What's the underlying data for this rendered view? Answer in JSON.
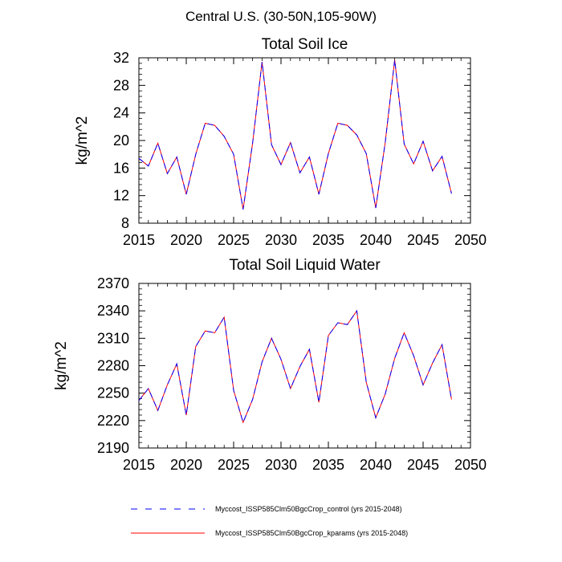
{
  "main_title": "Central U.S. (30-50N,105-90W)",
  "chart_data": [
    {
      "type": "line",
      "title": "Total Soil Ice",
      "xlabel": "",
      "ylabel": "kg/m^2",
      "xlim": [
        2015,
        2050
      ],
      "ylim": [
        8,
        32
      ],
      "xticks": [
        2015,
        2020,
        2025,
        2030,
        2035,
        2040,
        2045,
        2050
      ],
      "yticks": [
        8,
        12,
        16,
        20,
        24,
        28,
        32
      ],
      "x": [
        2015,
        2016,
        2017,
        2018,
        2019,
        2020,
        2021,
        2022,
        2023,
        2024,
        2025,
        2026,
        2027,
        2028,
        2029,
        2030,
        2031,
        2032,
        2033,
        2034,
        2035,
        2036,
        2037,
        2038,
        2039,
        2040,
        2041,
        2042,
        2043,
        2044,
        2045,
        2046,
        2047,
        2048
      ],
      "series": [
        {
          "name": "Myccost_ISSP585Clm50BgcCrop_control (yrs 2015-2048)",
          "color": "#0000ff",
          "dash": "dashed",
          "values": [
            17.4,
            16.3,
            19.6,
            15.2,
            17.6,
            12.2,
            18.0,
            22.5,
            22.2,
            20.6,
            18.0,
            10.0,
            19.6,
            31.4,
            19.4,
            16.5,
            19.7,
            15.3,
            17.6,
            12.2,
            18.1,
            22.5,
            22.2,
            20.8,
            18.1,
            10.2,
            19.7,
            31.7,
            19.5,
            16.6,
            19.9,
            15.6,
            17.7,
            12.3
          ]
        },
        {
          "name": "Myccost_ISSP585Clm50BgcCrop_kparams (yrs 2015-2048)",
          "color": "#ff0000",
          "dash": "solid",
          "values": [
            17.4,
            16.3,
            19.6,
            15.2,
            17.6,
            12.2,
            18.0,
            22.5,
            22.2,
            20.6,
            18.0,
            10.0,
            19.6,
            31.4,
            19.4,
            16.5,
            19.7,
            15.3,
            17.6,
            12.2,
            18.1,
            22.5,
            22.2,
            20.8,
            18.1,
            10.2,
            19.7,
            31.7,
            19.5,
            16.6,
            19.9,
            15.6,
            17.7,
            12.3
          ]
        }
      ]
    },
    {
      "type": "line",
      "title": "Total Soil Liquid Water",
      "xlabel": "",
      "ylabel": "kg/m^2",
      "xlim": [
        2015,
        2050
      ],
      "ylim": [
        2190,
        2370
      ],
      "xticks": [
        2015,
        2020,
        2025,
        2030,
        2035,
        2040,
        2045,
        2050
      ],
      "yticks": [
        2190,
        2220,
        2250,
        2280,
        2310,
        2340,
        2370
      ],
      "x": [
        2015,
        2016,
        2017,
        2018,
        2019,
        2020,
        2021,
        2022,
        2023,
        2024,
        2025,
        2026,
        2027,
        2028,
        2029,
        2030,
        2031,
        2032,
        2033,
        2034,
        2035,
        2036,
        2037,
        2038,
        2039,
        2040,
        2041,
        2042,
        2043,
        2044,
        2045,
        2046,
        2047,
        2048
      ],
      "series": [
        {
          "name": "Myccost_ISSP585Clm50BgcCrop_control (yrs 2015-2048)",
          "color": "#0000ff",
          "dash": "dashed",
          "values": [
            2242,
            2255,
            2231,
            2259,
            2282,
            2226,
            2301,
            2318,
            2316,
            2333,
            2253,
            2218,
            2243,
            2284,
            2310,
            2287,
            2255,
            2279,
            2298,
            2240,
            2313,
            2327,
            2325,
            2340,
            2262,
            2223,
            2249,
            2288,
            2316,
            2291,
            2259,
            2283,
            2303,
            2243
          ]
        },
        {
          "name": "Myccost_ISSP585Clm50BgcCrop_kparams (yrs 2015-2048)",
          "color": "#ff0000",
          "dash": "solid",
          "values": [
            2242,
            2255,
            2231,
            2259,
            2282,
            2226,
            2301,
            2318,
            2316,
            2333,
            2253,
            2218,
            2243,
            2284,
            2310,
            2287,
            2255,
            2279,
            2298,
            2240,
            2313,
            2327,
            2325,
            2340,
            2262,
            2223,
            2249,
            2288,
            2316,
            2291,
            2259,
            2283,
            2303,
            2243
          ]
        }
      ]
    }
  ],
  "legend": {
    "entries": [
      {
        "label": "Myccost_ISSP585Clm50BgcCrop_control (yrs 2015-2048)",
        "color": "#0000ff",
        "dash": "dashed"
      },
      {
        "label": "Myccost_ISSP585Clm50BgcCrop_kparams (yrs 2015-2048)",
        "color": "#ff0000",
        "dash": "solid"
      }
    ]
  }
}
